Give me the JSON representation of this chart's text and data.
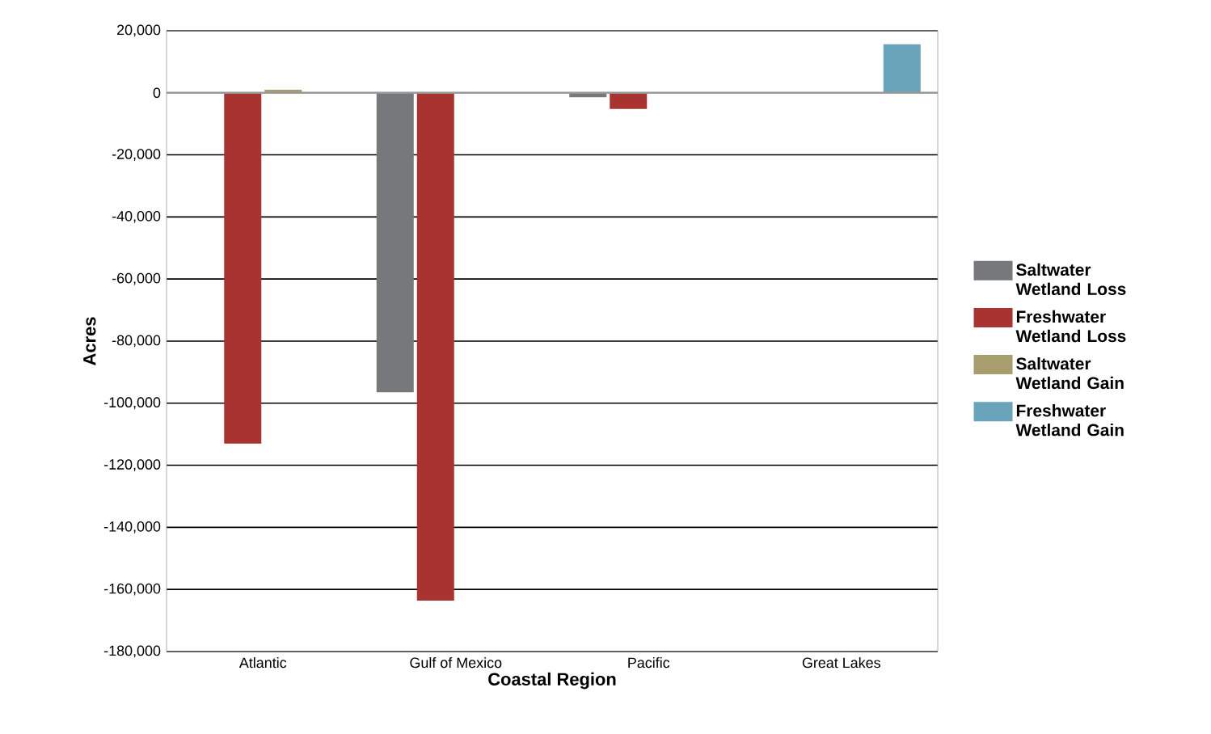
{
  "chart_data": {
    "type": "bar",
    "xlabel": "Coastal Region",
    "ylabel": "Acres",
    "categories": [
      "Atlantic",
      "Gulf of Mexico",
      "Pacific",
      "Great Lakes"
    ],
    "series": [
      {
        "name": "Saltwater Wetland Loss",
        "color": "#77787c",
        "values": [
          null,
          -96500,
          -1400,
          null
        ]
      },
      {
        "name": "Freshwater Wetland Loss",
        "color": "#a93331",
        "values": [
          -113000,
          -163600,
          -5200,
          null
        ]
      },
      {
        "name": "Saltwater Wetland Gain",
        "color": "#a89d6f",
        "values": [
          1000,
          null,
          null,
          null
        ]
      },
      {
        "name": "Freshwater Wetland Gain",
        "color": "#69a4ba",
        "values": [
          null,
          null,
          null,
          15600
        ]
      }
    ],
    "ylim": [
      -180000,
      20000
    ],
    "yticks": [
      {
        "value": -180000,
        "label": "-180,000"
      },
      {
        "value": -160000,
        "label": "-160,000"
      },
      {
        "value": -140000,
        "label": "-140,000"
      },
      {
        "value": -120000,
        "label": "-120,000"
      },
      {
        "value": -100000,
        "label": "-100,000"
      },
      {
        "value": -80000,
        "label": "-80,000"
      },
      {
        "value": -60000,
        "label": "-60,000"
      },
      {
        "value": -40000,
        "label": "-40,000"
      },
      {
        "value": -20000,
        "label": "-20,000"
      },
      {
        "value": 0,
        "label": "0"
      },
      {
        "value": 20000,
        "label": "20,000"
      }
    ],
    "grid": "y",
    "legend": "right"
  }
}
